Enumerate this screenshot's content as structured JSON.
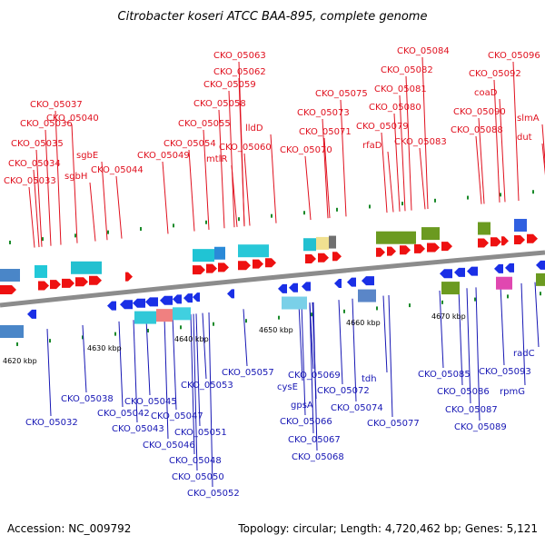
{
  "title": "Citrobacter koseri ATCC BAA-895, complete genome",
  "accession_text": "Accession: NC_009792",
  "summary_text": "Topology: circular; Length: 4,720,462 bp; Genes: 5,121",
  "colors": {
    "top_label": "#e0101e",
    "bottom_label": "#1616b4",
    "plus_gene": "#ee1111",
    "minus_gene": "#1a2fe6",
    "backbone": "#888888",
    "tick": "#1a8a2a"
  },
  "kbp_labels": [
    "4620 kbp",
    "4630 kbp",
    "4640 kbp",
    "4650 kbp",
    "4660 kbp",
    "4670 kbp"
  ],
  "top_labels": [
    "CKO_05033",
    "CKO_05034",
    "CKO_05035",
    "CKO_05036",
    "CKO_05037",
    "CKO_05040",
    "sgbH",
    "sgbE",
    "CKO_05044",
    "CKO_05049",
    "CKO_05054",
    "mtlR",
    "CKO_05055",
    "CKO_05058",
    "CKO_05059",
    "CKO_05060",
    "lldD",
    "CKO_05062",
    "CKO_05063",
    "CKO_05070",
    "CKO_05071",
    "CKO_05073",
    "CKO_05075",
    "rfaD",
    "CKO_05079",
    "CKO_05080",
    "CKO_05081",
    "CKO_05082",
    "CKO_05083",
    "CKO_05084",
    "CKO_05088",
    "CKO_05090",
    "coaD",
    "CKO_05092",
    "CKO_05096",
    "slmA",
    "dut"
  ],
  "bottom_labels": [
    "CKO_05032",
    "CKO_05038",
    "CKO_05042",
    "CKO_05043",
    "CKO_05045",
    "CKO_05046",
    "CKO_05047",
    "CKO_05048",
    "CKO_05050",
    "CKO_05051",
    "CKO_05052",
    "CKO_05053",
    "CKO_05057",
    "cysE",
    "gpsA",
    "CKO_05066",
    "CKO_05067",
    "CKO_05068",
    "CKO_05069",
    "CKO_05072",
    "CKO_05074",
    "tdh",
    "CKO_05077",
    "CKO_05085",
    "CKO_05086",
    "CKO_05087",
    "CKO_05089",
    "CKO_05093",
    "rpmG",
    "radC"
  ]
}
